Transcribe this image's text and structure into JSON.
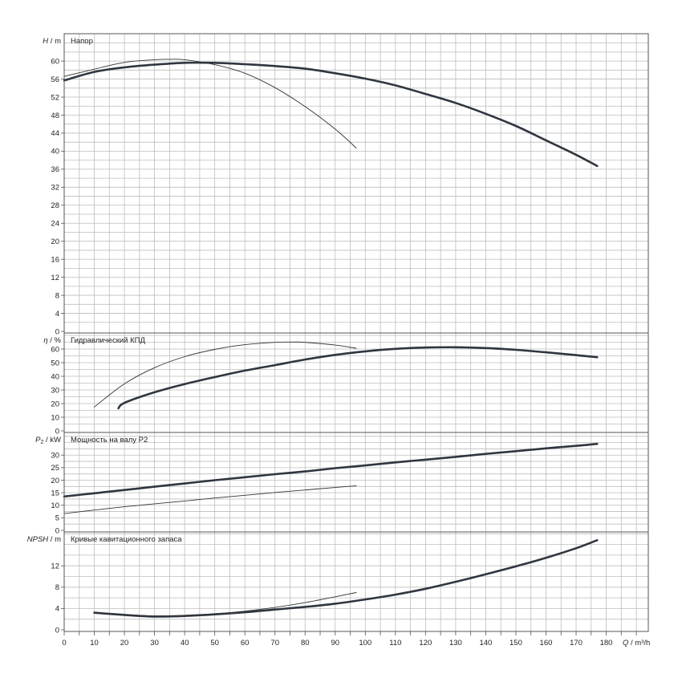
{
  "chart_data": {
    "type": "line",
    "x_axis": {
      "label_q": "Q",
      "label_unit": "m³/h",
      "min": 0,
      "max": 195,
      "ticks": [
        0,
        10,
        20,
        30,
        40,
        50,
        60,
        70,
        80,
        90,
        100,
        110,
        120,
        130,
        140,
        150,
        160,
        170,
        180
      ],
      "grid_step": 5
    },
    "panels": [
      {
        "id": "head",
        "title": "Напор",
        "ylabel_var": "H",
        "ylabel_unit": "m",
        "ylim": [
          0,
          65.5
        ],
        "yticks": [
          0,
          4,
          8,
          12,
          16,
          20,
          24,
          28,
          32,
          36,
          40,
          44,
          48,
          52,
          56,
          60
        ],
        "series": [
          {
            "style": "bold",
            "x": [
              0,
              10,
              20,
              30,
              40,
              50,
              60,
              70,
              80,
              90,
              100,
              110,
              120,
              130,
              140,
              150,
              160,
              170,
              177
            ],
            "y": [
              55.7,
              57.6,
              58.6,
              59.2,
              59.6,
              59.6,
              59.3,
              58.9,
              58.3,
              57.3,
              56.1,
              54.6,
              52.7,
              50.7,
              48.3,
              45.6,
              42.4,
              39.2,
              36.7
            ]
          },
          {
            "style": "thin",
            "x": [
              0,
              10,
              20,
              30,
              35,
              40,
              50,
              60,
              70,
              80,
              90,
              97
            ],
            "y": [
              56.6,
              58.2,
              59.7,
              60.3,
              60.4,
              60.3,
              59.2,
              57.3,
              54.1,
              49.9,
              44.9,
              40.7
            ]
          }
        ]
      },
      {
        "id": "efficiency",
        "title": "Гидравлический КПД",
        "ylabel_var": "η",
        "ylabel_unit": "%",
        "ylim": [
          0,
          70
        ],
        "yticks": [
          0,
          10,
          20,
          30,
          40,
          50,
          60
        ],
        "series": [
          {
            "style": "bold",
            "x": [
              18,
              20,
              30,
              40,
              50,
              60,
              70,
              80,
              90,
              100,
              110,
              120,
              130,
              140,
              150,
              160,
              170,
              177
            ],
            "y": [
              16.5,
              20.5,
              28.3,
              34.3,
              39.4,
              44.2,
              48.2,
              52.3,
              55.7,
              58.3,
              60.1,
              61.1,
              61.3,
              60.7,
              59.4,
              57.6,
              55.5,
              54.0
            ]
          },
          {
            "style": "thin",
            "x": [
              10,
              20,
              30,
              40,
              50,
              60,
              70,
              75,
              80,
              90,
              97
            ],
            "y": [
              17.5,
              34.5,
              46.3,
              54.4,
              59.7,
              63.2,
              64.9,
              65.1,
              64.9,
              62.9,
              60.5
            ]
          }
        ]
      },
      {
        "id": "power",
        "title": "Мощность на валу P2",
        "ylabel_var": "P",
        "ylabel_sub": "2",
        "ylabel_unit": "kW",
        "ylim": [
          0,
          38
        ],
        "yticks": [
          0,
          5,
          10,
          15,
          20,
          25,
          30
        ],
        "series": [
          {
            "style": "bold",
            "x": [
              0,
              10,
              20,
              30,
              40,
              50,
              60,
              70,
              80,
              90,
              100,
              110,
              120,
              130,
              140,
              150,
              160,
              170,
              177
            ],
            "y": [
              13.5,
              14.8,
              16.1,
              17.4,
              18.7,
              20.0,
              21.2,
              22.4,
              23.5,
              24.8,
              25.9,
              27.1,
              28.2,
              29.3,
              30.5,
              31.6,
              32.7,
              33.7,
              34.5
            ]
          },
          {
            "style": "thin",
            "x": [
              0,
              10,
              20,
              30,
              40,
              50,
              60,
              70,
              80,
              90,
              97
            ],
            "y": [
              6.7,
              8.1,
              9.4,
              10.6,
              11.7,
              12.9,
              14.0,
              15.1,
              16.1,
              17.1,
              17.8
            ]
          }
        ]
      },
      {
        "id": "npsh",
        "title": "Кривые кавитационного запаса",
        "ylabel_var": "NPSH",
        "ylabel_unit": "m",
        "ylim": [
          0,
          19
        ],
        "yticks": [
          0,
          4,
          8,
          12
        ],
        "series": [
          {
            "style": "bold",
            "x": [
              10,
              20,
              30,
              40,
              50,
              60,
              70,
              80,
              90,
              100,
              110,
              120,
              130,
              140,
              150,
              160,
              170,
              177
            ],
            "y": [
              3.2,
              2.8,
              2.5,
              2.6,
              2.9,
              3.3,
              3.8,
              4.3,
              4.9,
              5.7,
              6.6,
              7.7,
              9.0,
              10.4,
              11.9,
              13.5,
              15.3,
              16.8
            ]
          },
          {
            "style": "thin",
            "x": [
              10,
              20,
              30,
              40,
              50,
              60,
              70,
              80,
              90,
              97
            ],
            "y": [
              3.3,
              2.9,
              2.6,
              2.7,
              3.0,
              3.5,
              4.2,
              5.1,
              6.2,
              7.0
            ]
          }
        ]
      }
    ]
  }
}
